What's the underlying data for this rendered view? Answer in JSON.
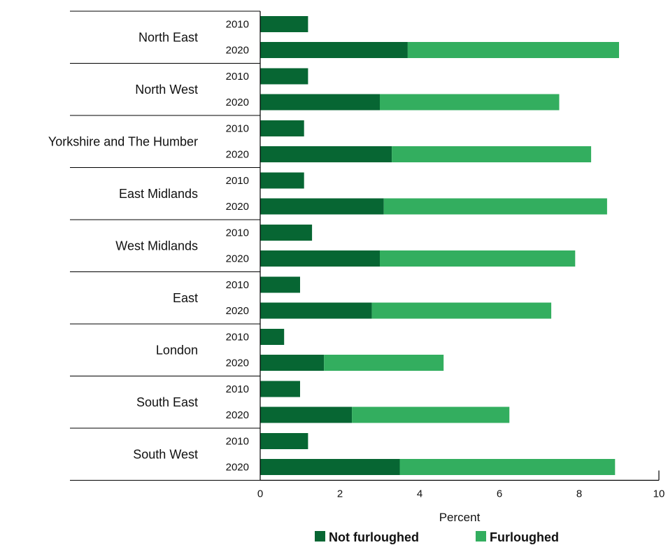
{
  "chart_data": {
    "type": "bar",
    "orientation": "horizontal",
    "stacked": true,
    "xlabel": "Percent",
    "xlim": [
      0,
      10
    ],
    "xticks": [
      "0",
      "2",
      "4",
      "6",
      "8",
      "10"
    ],
    "legend_position": "bottom",
    "colors": {
      "not_furloughed": "#076633",
      "furloughed": "#33ae5f"
    },
    "series": [
      {
        "name": "Not furloughed",
        "key": "not_furloughed"
      },
      {
        "name": "Furloughed",
        "key": "furloughed"
      }
    ],
    "groups": [
      {
        "region": "North East",
        "bars": [
          {
            "year": "2010",
            "not_furloughed": 1.2,
            "furloughed": 0
          },
          {
            "year": "2020",
            "not_furloughed": 3.7,
            "furloughed": 5.3
          }
        ]
      },
      {
        "region": "North West",
        "bars": [
          {
            "year": "2010",
            "not_furloughed": 1.2,
            "furloughed": 0
          },
          {
            "year": "2020",
            "not_furloughed": 3.0,
            "furloughed": 4.5
          }
        ]
      },
      {
        "region": "Yorkshire and The Humber",
        "bars": [
          {
            "year": "2010",
            "not_furloughed": 1.1,
            "furloughed": 0
          },
          {
            "year": "2020",
            "not_furloughed": 3.3,
            "furloughed": 5.0
          }
        ]
      },
      {
        "region": "East Midlands",
        "bars": [
          {
            "year": "2010",
            "not_furloughed": 1.1,
            "furloughed": 0
          },
          {
            "year": "2020",
            "not_furloughed": 3.1,
            "furloughed": 5.6
          }
        ]
      },
      {
        "region": "West Midlands",
        "bars": [
          {
            "year": "2010",
            "not_furloughed": 1.3,
            "furloughed": 0
          },
          {
            "year": "2020",
            "not_furloughed": 3.0,
            "furloughed": 4.9
          }
        ]
      },
      {
        "region": "East",
        "bars": [
          {
            "year": "2010",
            "not_furloughed": 1.0,
            "furloughed": 0
          },
          {
            "year": "2020",
            "not_furloughed": 2.8,
            "furloughed": 4.5
          }
        ]
      },
      {
        "region": "London",
        "bars": [
          {
            "year": "2010",
            "not_furloughed": 0.6,
            "furloughed": 0
          },
          {
            "year": "2020",
            "not_furloughed": 1.6,
            "furloughed": 3.0
          }
        ]
      },
      {
        "region": "South East",
        "bars": [
          {
            "year": "2010",
            "not_furloughed": 1.0,
            "furloughed": 0
          },
          {
            "year": "2020",
            "not_furloughed": 2.3,
            "furloughed": 3.95
          }
        ]
      },
      {
        "region": "South West",
        "bars": [
          {
            "year": "2010",
            "not_furloughed": 1.2,
            "furloughed": 0
          },
          {
            "year": "2020",
            "not_furloughed": 3.5,
            "furloughed": 5.4
          }
        ]
      }
    ]
  }
}
